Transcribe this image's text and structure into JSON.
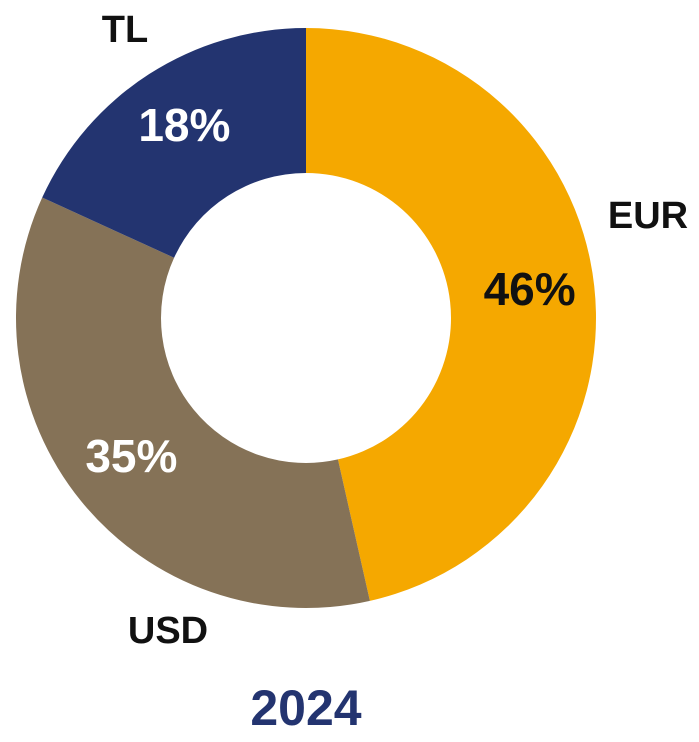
{
  "chart_data": {
    "type": "donut",
    "title": "2024",
    "categories": [
      "EUR",
      "USD",
      "TL"
    ],
    "values": [
      46,
      35,
      18
    ],
    "value_labels": [
      "46%",
      "35%",
      "18%"
    ],
    "colors": [
      "#f5a800",
      "#857257",
      "#233470"
    ]
  }
}
